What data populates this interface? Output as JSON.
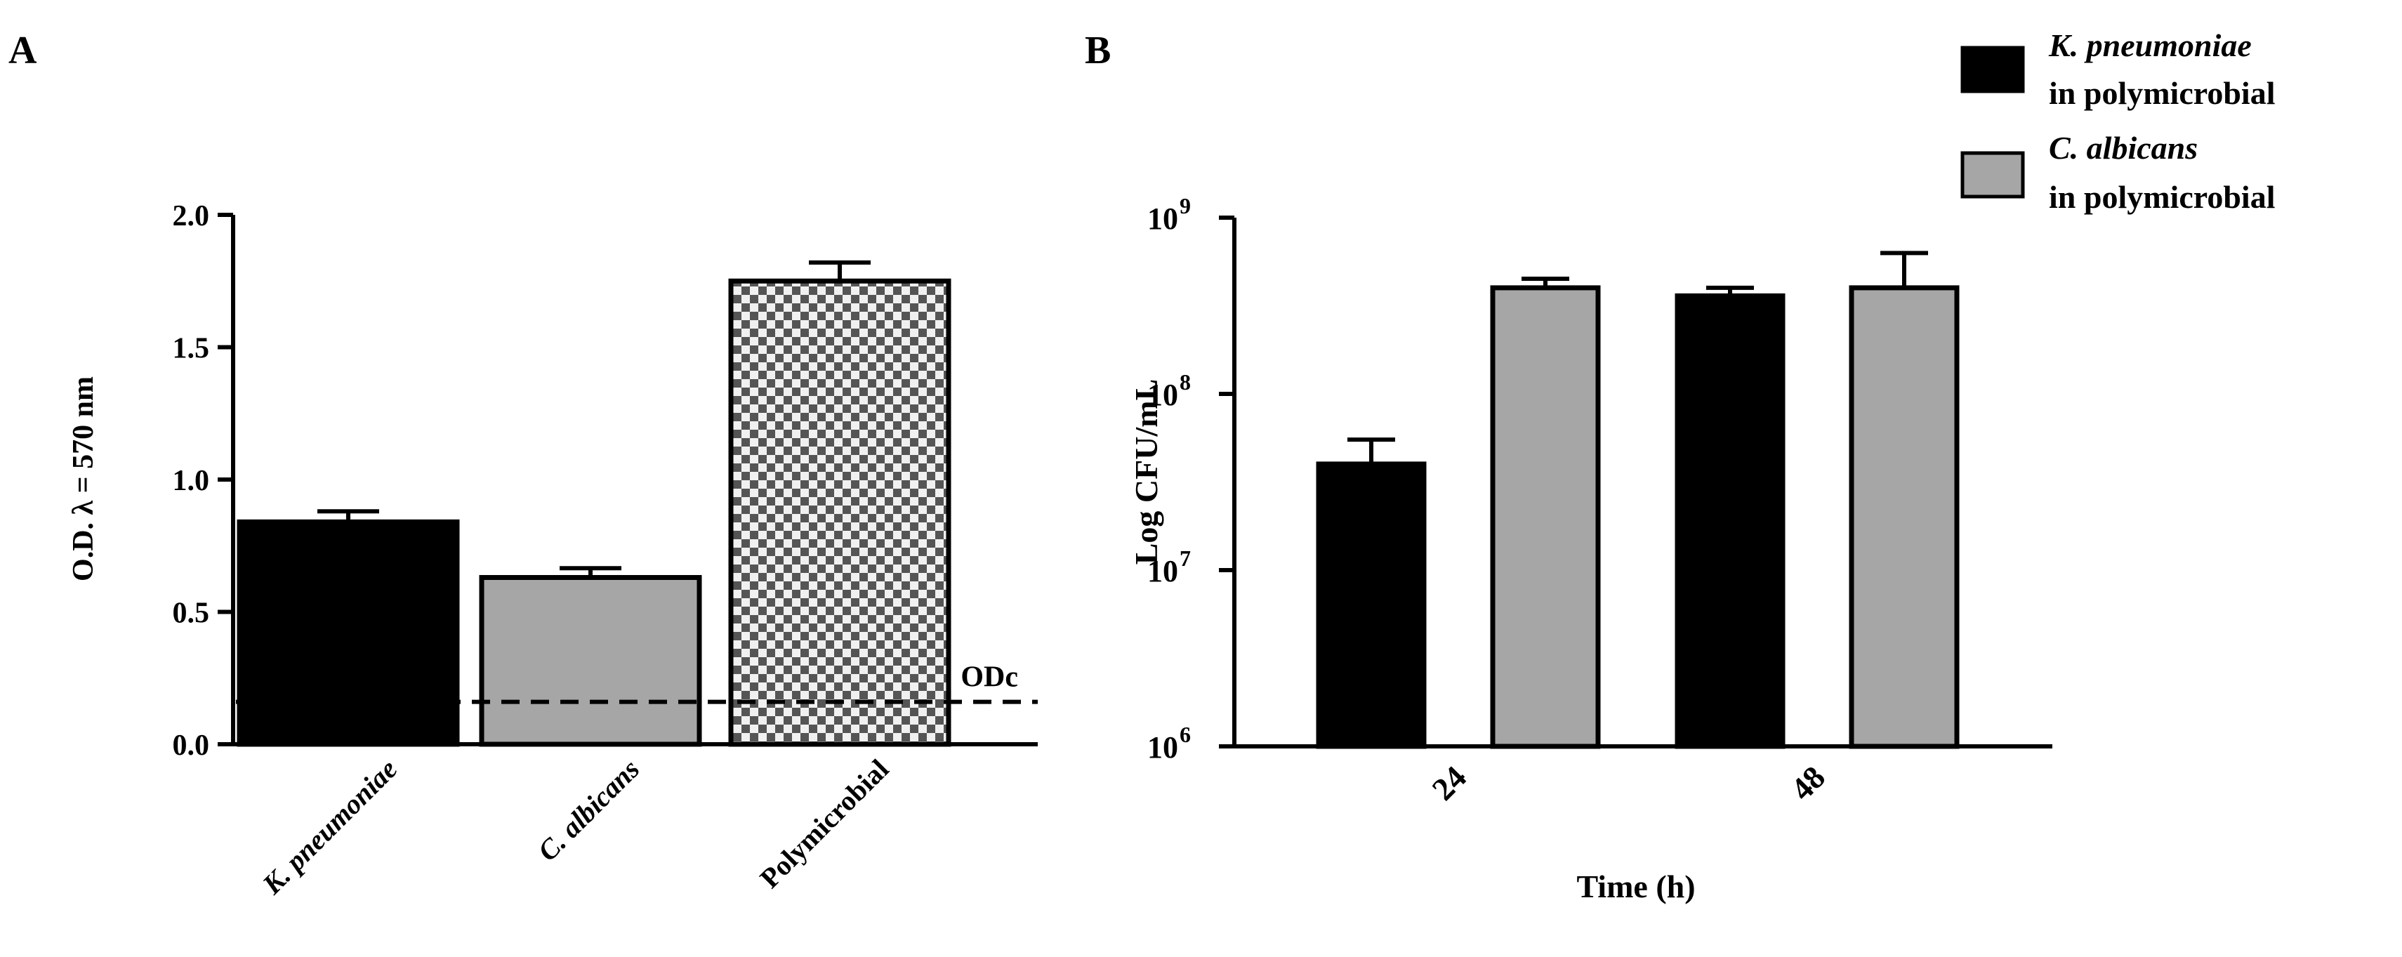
{
  "colors": {
    "black_bar": "#000000",
    "gray_bar": "#a6a6a6",
    "checker_dark": "#555555",
    "checker_light": "#f0f0f0",
    "axis": "#000000"
  },
  "panels": {
    "a_label": "A",
    "b_label": "B"
  },
  "legend": {
    "placement": "top-right",
    "items": [
      {
        "line1": "K. pneumoniae",
        "line2": "in polymicrobial",
        "fill": "black"
      },
      {
        "line1": "C. albicans",
        "line2": "in polymicrobial",
        "fill": "gray"
      }
    ]
  },
  "chart_data": [
    {
      "panel": "A",
      "type": "bar",
      "title": "",
      "xlabel": "",
      "ylabel": "O.D. λ = 570 nm",
      "ylim": [
        0,
        2.0
      ],
      "yticks": [
        0.0,
        0.5,
        1.0,
        1.5,
        2.0
      ],
      "ytick_labels": [
        "0.0",
        "0.5",
        "1.0",
        "1.5",
        "2.0"
      ],
      "categories": [
        "K. pneumoniae",
        "C. albicans",
        "Polymicrobial"
      ],
      "values": [
        0.84,
        0.63,
        1.75
      ],
      "errors": [
        0.04,
        0.035,
        0.07
      ],
      "fills": [
        "black",
        "gray",
        "checker"
      ],
      "reference_line": {
        "label": "ODc",
        "value": 0.16,
        "style": "dashed"
      },
      "grid": false
    },
    {
      "panel": "B",
      "type": "bar",
      "title": "",
      "xlabel": "Time (h)",
      "ylabel": "Log CFU/mL",
      "yscale": "log",
      "ylim": [
        1000000,
        1000000000
      ],
      "ytick_bases": [
        "10",
        "10",
        "10",
        "10"
      ],
      "ytick_exponents": [
        "6",
        "7",
        "8",
        "9"
      ],
      "categories": [
        "24",
        "48"
      ],
      "series": [
        {
          "name": "K. pneumoniae in polymicrobial",
          "values": [
            40000000,
            360000000
          ],
          "errors_upper": [
            55000000,
            400000000
          ],
          "fill": "black"
        },
        {
          "name": "C. albicans in polymicrobial",
          "values": [
            400000000,
            400000000
          ],
          "errors_upper": [
            450000000,
            630000000
          ],
          "fill": "gray"
        }
      ],
      "grid": false
    }
  ]
}
